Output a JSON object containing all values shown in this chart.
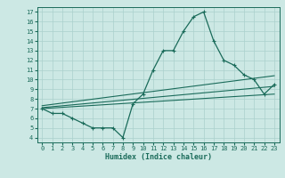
{
  "title": "",
  "xlabel": "Humidex (Indice chaleur)",
  "ylabel": "",
  "bg_color": "#cce8e4",
  "grid_color": "#aad0cc",
  "line_color": "#1a6b5a",
  "x_data": [
    0,
    1,
    2,
    3,
    4,
    5,
    6,
    7,
    8,
    9,
    10,
    11,
    12,
    13,
    14,
    15,
    16,
    17,
    18,
    19,
    20,
    21,
    22,
    23
  ],
  "y_main": [
    7.0,
    6.5,
    6.5,
    6.0,
    5.5,
    5.0,
    5.0,
    5.0,
    4.0,
    7.5,
    8.5,
    11.0,
    13.0,
    13.0,
    15.0,
    16.5,
    17.0,
    14.0,
    12.0,
    11.5,
    10.5,
    10.0,
    8.5,
    9.5
  ],
  "trend1_x": [
    0,
    23
  ],
  "trend1_y": [
    7.3,
    10.4
  ],
  "trend2_x": [
    0,
    23
  ],
  "trend2_y": [
    7.1,
    9.3
  ],
  "trend3_x": [
    0,
    23
  ],
  "trend3_y": [
    7.0,
    8.5
  ],
  "xlim": [
    -0.5,
    23.5
  ],
  "ylim": [
    3.5,
    17.5
  ],
  "yticks": [
    4,
    5,
    6,
    7,
    8,
    9,
    10,
    11,
    12,
    13,
    14,
    15,
    16,
    17
  ],
  "xticks": [
    0,
    1,
    2,
    3,
    4,
    5,
    6,
    7,
    8,
    9,
    10,
    11,
    12,
    13,
    14,
    15,
    16,
    17,
    18,
    19,
    20,
    21,
    22,
    23
  ]
}
